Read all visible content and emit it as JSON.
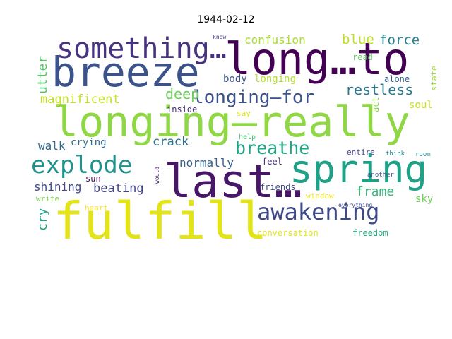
{
  "title": "1944-02-12",
  "words": [
    {
      "text": "longing—really",
      "color": "#8fd744"
    },
    {
      "text": "fulfill",
      "color": "#e2e418"
    },
    {
      "text": "breeze",
      "color": "#3b528b"
    },
    {
      "text": "long…to",
      "color": "#440154"
    },
    {
      "text": "spring",
      "color": "#1fa187"
    },
    {
      "text": "last…",
      "color": "#481668"
    },
    {
      "text": "something…",
      "color": "#46327e"
    },
    {
      "text": "awakening",
      "color": "#3e4989"
    },
    {
      "text": "explode",
      "color": "#21918c"
    },
    {
      "text": "longing—for",
      "color": "#3b528b"
    },
    {
      "text": "breathe",
      "color": "#21a585"
    },
    {
      "text": "magnificent",
      "color": "#c2df23"
    },
    {
      "text": "confusion",
      "color": "#addc30"
    },
    {
      "text": "blue",
      "color": "#bddf26"
    },
    {
      "text": "force",
      "color": "#26828e"
    },
    {
      "text": "restless",
      "color": "#2a788e"
    },
    {
      "text": "deep",
      "color": "#6ccd5a"
    },
    {
      "text": "utter",
      "color": "#52c569"
    },
    {
      "text": "crack",
      "color": "#2c728e"
    },
    {
      "text": "normally",
      "color": "#355f8d"
    },
    {
      "text": "walk",
      "color": "#306a8e"
    },
    {
      "text": "crying",
      "color": "#31688e"
    },
    {
      "text": "beating",
      "color": "#414487"
    },
    {
      "text": "shining",
      "color": "#404688"
    },
    {
      "text": "frame",
      "color": "#35b779"
    },
    {
      "text": "cry",
      "color": "#20a486"
    },
    {
      "text": "body",
      "color": "#3b528b"
    },
    {
      "text": "longing",
      "color": "#b5de2b"
    },
    {
      "text": "soul",
      "color": "#c8e020"
    },
    {
      "text": "state",
      "color": "#9fda3a"
    },
    {
      "text": "act",
      "color": "#8fd744"
    },
    {
      "text": "alone",
      "color": "#355f8d"
    },
    {
      "text": "read",
      "color": "#5ec962"
    },
    {
      "text": "inside",
      "color": "#472d7b"
    },
    {
      "text": "say",
      "color": "#dde318"
    },
    {
      "text": "sun",
      "color": "#440154"
    },
    {
      "text": "feel",
      "color": "#472c7a"
    },
    {
      "text": "friends",
      "color": "#3e4a89"
    },
    {
      "text": "window",
      "color": "#f1e51d"
    },
    {
      "text": "sky",
      "color": "#6ece58"
    },
    {
      "text": "write",
      "color": "#7ad151"
    },
    {
      "text": "heart",
      "color": "#fde725"
    },
    {
      "text": "conversation",
      "color": "#e2e418"
    },
    {
      "text": "freedom",
      "color": "#28ae80"
    },
    {
      "text": "entire",
      "color": "#414487"
    },
    {
      "text": "another",
      "color": "#3b528b"
    },
    {
      "text": "room",
      "color": "#25838e"
    },
    {
      "text": "think",
      "color": "#25848e"
    },
    {
      "text": "help",
      "color": "#40bd72"
    },
    {
      "text": "everything",
      "color": "#3e4989"
    },
    {
      "text": "know",
      "color": "#443983"
    },
    {
      "text": "would",
      "color": "#481a6c"
    }
  ]
}
